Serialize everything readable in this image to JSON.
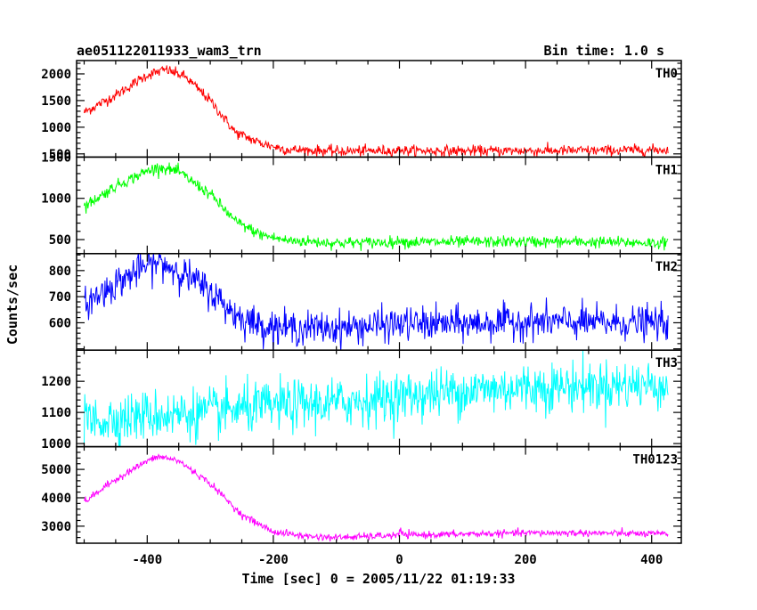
{
  "chart_data": {
    "type": "line",
    "title": "ae051122011933_wam3_trn",
    "bin_time": "Bin time: 1.0 s",
    "xlabel": "Time [sec] 0 = 2005/11/22 01:19:33",
    "ylabel": "Counts/sec",
    "xlim": [
      -512,
      447
    ],
    "x_ticks": [
      -400,
      -200,
      0,
      200,
      400
    ],
    "data_x_range": [
      -500,
      426
    ],
    "grid": false,
    "panels": [
      {
        "name": "TH0",
        "color": "#ff0000",
        "ylim": [
          440,
          2250
        ],
        "y_ticks": [
          500,
          1000,
          1500,
          2000
        ],
        "profile": {
          "x": [
            -500,
            -450,
            -400,
            -370,
            -340,
            -300,
            -260,
            -220,
            -180,
            -100,
            0,
            100,
            200,
            300,
            426
          ],
          "y": [
            1280,
            1600,
            1980,
            2080,
            1950,
            1500,
            900,
            700,
            580,
            550,
            560,
            555,
            560,
            560,
            580
          ]
        },
        "noise": 50,
        "bump_at_zero": 60
      },
      {
        "name": "TH1",
        "color": "#00ff00",
        "ylim": [
          330,
          1500
        ],
        "y_ticks": [
          500,
          1000,
          1500
        ],
        "profile": {
          "x": [
            -500,
            -450,
            -400,
            -380,
            -350,
            -300,
            -260,
            -220,
            -180,
            -100,
            0,
            100,
            200,
            300,
            426
          ],
          "y": [
            900,
            1150,
            1330,
            1380,
            1320,
            1050,
            720,
            560,
            490,
            460,
            470,
            470,
            475,
            470,
            460
          ]
        },
        "noise": 35,
        "bump_at_zero": 60
      },
      {
        "name": "TH2",
        "color": "#0000ff",
        "ylim": [
          495,
          865
        ],
        "y_ticks": [
          600,
          700,
          800
        ],
        "profile": {
          "x": [
            -500,
            -450,
            -400,
            -380,
            -350,
            -300,
            -260,
            -220,
            -180,
            -100,
            0,
            100,
            200,
            300,
            426
          ],
          "y": [
            670,
            750,
            820,
            830,
            800,
            720,
            630,
            590,
            580,
            580,
            595,
            595,
            605,
            600,
            600
          ]
        },
        "noise": 32,
        "bump_at_zero": 0
      },
      {
        "name": "TH3",
        "color": "#00ffff",
        "ylim": [
          990,
          1300
        ],
        "y_ticks": [
          1000,
          1100,
          1200
        ],
        "profile": {
          "x": [
            -500,
            -400,
            -300,
            -200,
            -100,
            0,
            100,
            200,
            300,
            426
          ],
          "y": [
            1070,
            1090,
            1100,
            1120,
            1130,
            1150,
            1170,
            1180,
            1185,
            1190
          ]
        },
        "noise": 40,
        "bump_at_zero": 0
      },
      {
        "name": "TH0123",
        "color": "#ff00ff",
        "ylim": [
          2400,
          5800
        ],
        "y_ticks": [
          3000,
          4000,
          5000
        ],
        "profile": {
          "x": [
            -500,
            -450,
            -400,
            -380,
            -350,
            -300,
            -250,
            -200,
            -150,
            -100,
            0,
            100,
            200,
            300,
            426
          ],
          "y": [
            3850,
            4650,
            5300,
            5450,
            5300,
            4500,
            3400,
            2800,
            2650,
            2600,
            2680,
            2720,
            2760,
            2760,
            2720
          ]
        },
        "noise": 60,
        "bump_at_zero": 200
      }
    ]
  }
}
